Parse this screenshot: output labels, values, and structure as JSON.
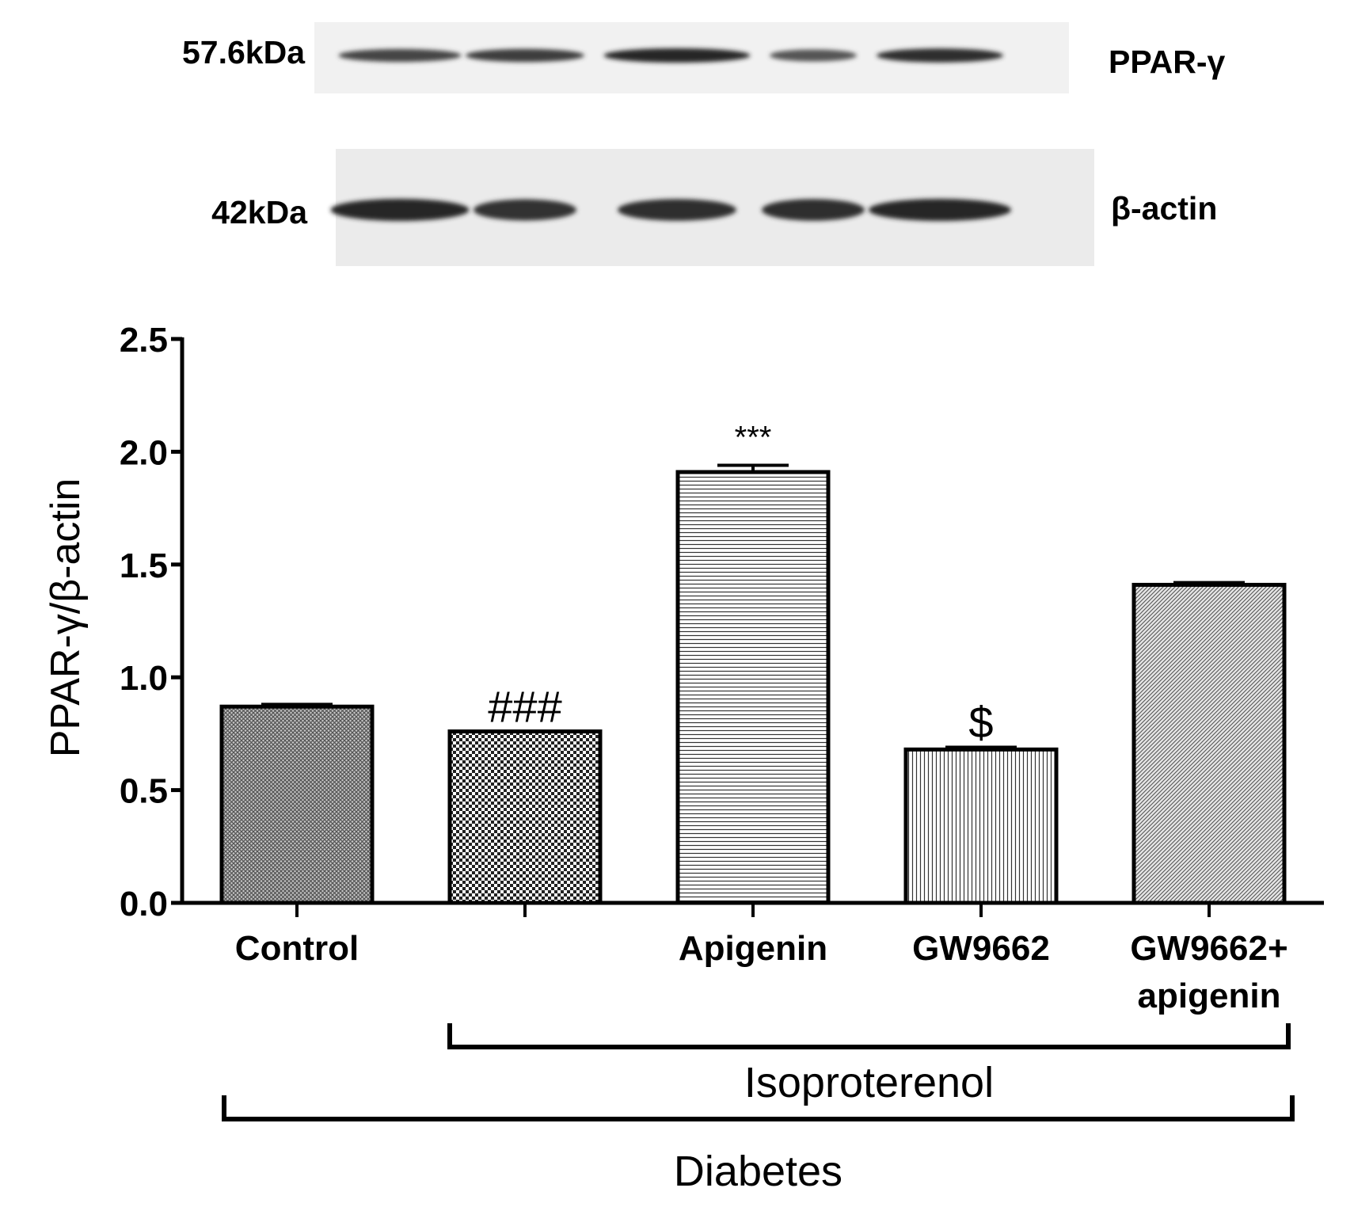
{
  "blot": {
    "rows": [
      {
        "size_label": "57.6kDa",
        "protein_label": "PPAR-γ",
        "band_intensity": [
          0.75,
          0.8,
          1.0,
          0.6,
          0.95
        ]
      },
      {
        "size_label": "42kDa",
        "protein_label": "β-actin",
        "band_intensity": [
          1.0,
          0.9,
          0.95,
          0.95,
          1.0
        ]
      }
    ]
  },
  "chart_data": {
    "type": "bar",
    "categories": [
      "Control",
      "",
      "Apigenin",
      "GW9662",
      "GW9662+ apigenin"
    ],
    "category_lines": [
      [
        "Control"
      ],
      [],
      [
        "Apigenin"
      ],
      [
        "GW9662"
      ],
      [
        "GW9662+",
        "apigenin"
      ]
    ],
    "values": [
      0.87,
      0.76,
      1.91,
      0.68,
      1.41
    ],
    "errors": [
      0.01,
      0.0,
      0.03,
      0.01,
      0.01
    ],
    "annotations": [
      "",
      "###",
      "***",
      "$",
      ""
    ],
    "patterns": [
      "dense-crosshatch",
      "checker",
      "horizontal-lines",
      "vertical-lines",
      "diagonal-lines"
    ],
    "ylabel": "PPAR-γ/β-actin",
    "ylim": [
      0,
      2.5
    ],
    "yticks": [
      "0.0",
      "0.5",
      "1.0",
      "1.5",
      "2.0",
      "2.5"
    ],
    "ytick_values": [
      0,
      0.5,
      1.0,
      1.5,
      2.0,
      2.5
    ],
    "grid": false,
    "groups": [
      {
        "label": "Isoproterenol",
        "from": 1,
        "to": 4
      },
      {
        "label": "Diabetes",
        "from": 0,
        "to": 4
      }
    ]
  }
}
